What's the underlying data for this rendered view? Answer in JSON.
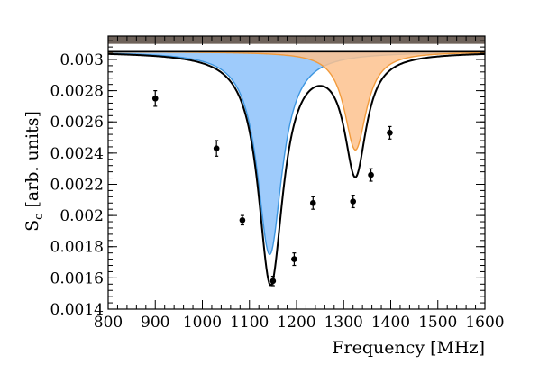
{
  "chart_data": {
    "type": "line",
    "xlabel": "Frequency [MHz]",
    "ylabel_main": "S",
    "ylabel_sub": "c",
    "ylabel_tail": " [arb. units]",
    "xlim": [
      800,
      1600
    ],
    "ylim": [
      0.0014,
      0.00315
    ],
    "xticks": [
      800,
      900,
      1000,
      1100,
      1200,
      1300,
      1400,
      1500,
      1600
    ],
    "xtick_labels": [
      "800",
      "900",
      "1000",
      "1100",
      "1200",
      "1300",
      "1400",
      "1500",
      "1600"
    ],
    "yticks": [
      0.0014,
      0.0016,
      0.0018,
      0.002,
      0.0022,
      0.0024,
      0.0026,
      0.0028,
      0.003
    ],
    "ytick_labels": [
      "0.0014",
      "0.0016",
      "0.0018",
      "0.002",
      "0.0022",
      "0.0024",
      "0.0026",
      "0.0028",
      "0.003"
    ],
    "grid": false,
    "baseline": 0.00305,
    "top_band": [
      0.0031,
      0.00315
    ],
    "points": {
      "x": [
        900,
        1030,
        1085,
        1150,
        1195,
        1235,
        1320,
        1358,
        1398
      ],
      "y": [
        0.00275,
        0.00243,
        0.00197,
        0.00158,
        0.00172,
        0.00208,
        0.00209,
        0.00226,
        0.00253
      ],
      "err": [
        5e-05,
        5e-05,
        3e-05,
        3e-05,
        4e-05,
        4e-05,
        4e-05,
        4e-05,
        4e-05
      ]
    },
    "components": [
      {
        "center": 1143,
        "width": 64,
        "depth": 0.0013,
        "color": "#9ecbfb",
        "edge": "#3d96e0"
      },
      {
        "center": 1325,
        "width": 57,
        "depth": 0.00063,
        "color": "#fdc28e",
        "edge": "#f29b3c"
      }
    ],
    "fit": {
      "baseline": 0.00305,
      "components": [
        {
          "center": 1145,
          "width": 64,
          "depth": 0.00148
        },
        {
          "center": 1325,
          "width": 56,
          "depth": 0.00076
        }
      ],
      "color": "#000000"
    }
  }
}
